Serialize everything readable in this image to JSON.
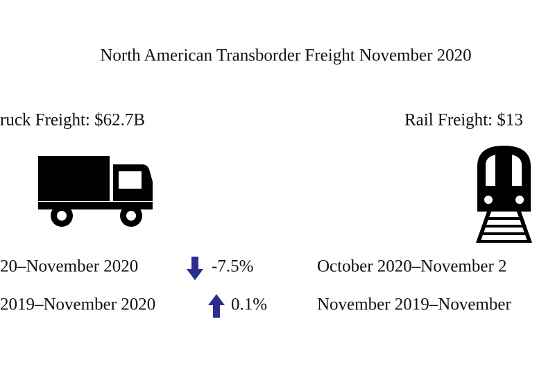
{
  "title": "North American Transborder Freight November 2020",
  "truck": {
    "label": "ruck Freight: $62.7B",
    "changes": [
      {
        "period": "20–November 2020",
        "value": "-7.5%"
      },
      {
        "period": "2019–November 2020",
        "value": "0.1%"
      }
    ]
  },
  "rail": {
    "label": "Rail Freight: $13",
    "changes": [
      {
        "period": "October 2020–November 2"
      },
      {
        "period": "November 2019–November"
      }
    ]
  }
}
